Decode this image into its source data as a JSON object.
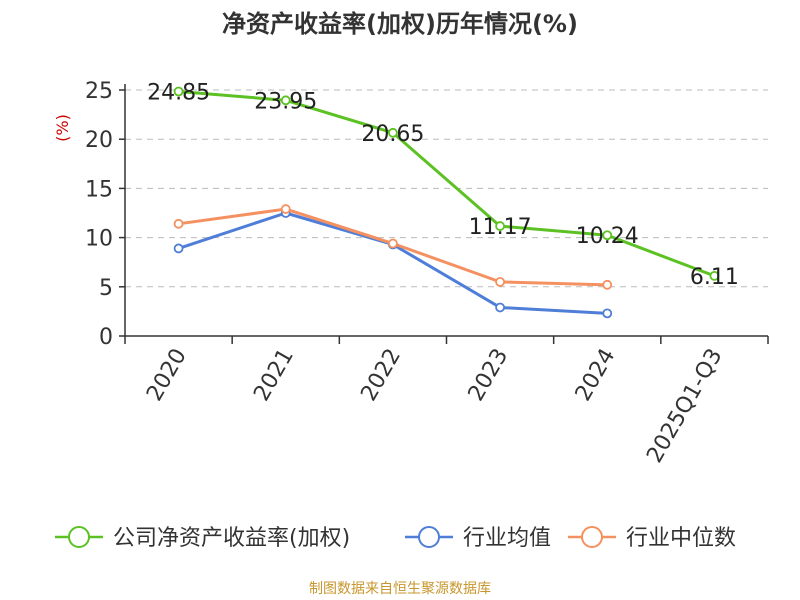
{
  "chart_data": {
    "type": "line",
    "title": "净资产收益率(加权)历年情况(%)",
    "ylabel": "(%)",
    "xlabel": "",
    "categories": [
      "2020",
      "2021",
      "2022",
      "2023",
      "2024",
      "2025Q1-Q3"
    ],
    "ylim": [
      0,
      25
    ],
    "yticks": [
      0,
      5,
      10,
      15,
      20,
      25
    ],
    "grid": true,
    "legend_position": "bottom",
    "series": [
      {
        "name": "公司净资产收益率(加权)",
        "color": "#5cc122",
        "values": [
          24.85,
          23.95,
          20.65,
          11.17,
          10.24,
          6.11
        ],
        "labels": [
          "24.85",
          "23.95",
          "20.65",
          "11.17",
          "10.24",
          "6.11"
        ]
      },
      {
        "name": "行业均值",
        "color": "#4f7ed8",
        "values": [
          8.9,
          12.5,
          9.3,
          2.9,
          2.3,
          null
        ]
      },
      {
        "name": "行业中位数",
        "color": "#f59160",
        "values": [
          11.4,
          12.9,
          9.4,
          5.5,
          5.2,
          null
        ]
      }
    ]
  },
  "source": "制图数据来自恒生聚源数据库"
}
